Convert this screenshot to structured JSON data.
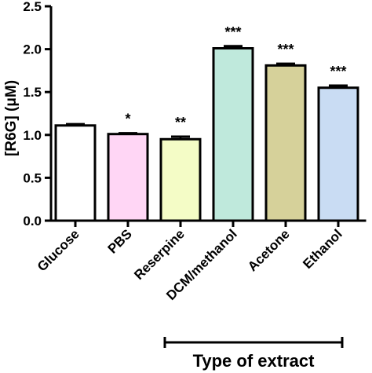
{
  "chart_data": {
    "type": "bar",
    "categories": [
      "Glucose",
      "PBS",
      "Reserpine",
      "DCM/methanol",
      "Acetone",
      "Ethanol"
    ],
    "values": [
      1.11,
      1.01,
      0.95,
      2.01,
      1.81,
      1.55
    ],
    "errors": [
      0.015,
      0.01,
      0.03,
      0.025,
      0.02,
      0.025
    ],
    "significance": [
      "",
      "*",
      "**",
      "***",
      "***",
      "***"
    ],
    "colors": [
      "#ffffff",
      "#ffd6f5",
      "#f4fcc6",
      "#bfe9dc",
      "#d6d19a",
      "#c9dcf3"
    ],
    "ylim": [
      0,
      2.5
    ],
    "yticks": [
      0.0,
      0.5,
      1.0,
      1.5,
      2.0,
      2.5
    ],
    "ytick_labels": [
      "0.0",
      "0.5",
      "1.0",
      "1.5",
      "2.0",
      "2.5"
    ],
    "ylabel": "[R6G] (μM)",
    "xlabel": "Type of extract",
    "bracket_span": [
      "DCM/methanol",
      "Ethanol"
    ],
    "grid": false
  }
}
